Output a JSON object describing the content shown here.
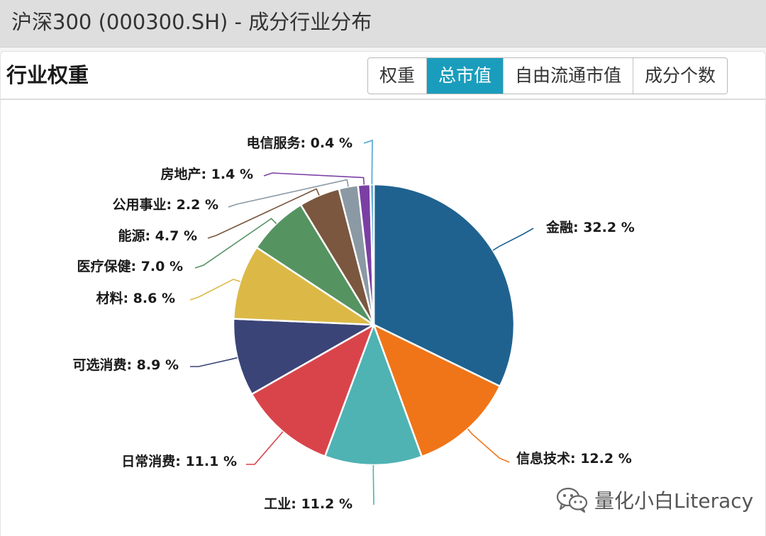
{
  "window": {
    "title": "沪深300 (000300.SH) - 成分行业分布"
  },
  "card": {
    "title": "行业权重",
    "tabs": [
      {
        "label": "权重",
        "active": false
      },
      {
        "label": "总市值",
        "active": true
      },
      {
        "label": "自由流通市值",
        "active": false
      },
      {
        "label": "成分个数",
        "active": false
      }
    ]
  },
  "watermark": {
    "text": "量化小白Literacy",
    "icon": "wechat-icon"
  },
  "chart_data": {
    "type": "pie",
    "unit": "%",
    "slices": [
      {
        "name": "金融",
        "value": 32.2,
        "color": "#1f6290"
      },
      {
        "name": "信息技术",
        "value": 12.2,
        "color": "#f07518"
      },
      {
        "name": "工业",
        "value": 11.2,
        "color": "#4fb2b3"
      },
      {
        "name": "日常消费",
        "value": 11.1,
        "color": "#d9444b"
      },
      {
        "name": "可选消费",
        "value": 8.9,
        "color": "#3a4477"
      },
      {
        "name": "材料",
        "value": 8.6,
        "color": "#dcb946"
      },
      {
        "name": "医疗保健",
        "value": 7.0,
        "color": "#559361"
      },
      {
        "name": "能源",
        "value": 4.7,
        "color": "#7a573e"
      },
      {
        "name": "公用事业",
        "value": 2.2,
        "color": "#8b99a4"
      },
      {
        "name": "房地产",
        "value": 1.4,
        "color": "#7b3fa4"
      },
      {
        "name": "电信服务",
        "value": 0.4,
        "color": "#4ba6d4"
      }
    ]
  }
}
